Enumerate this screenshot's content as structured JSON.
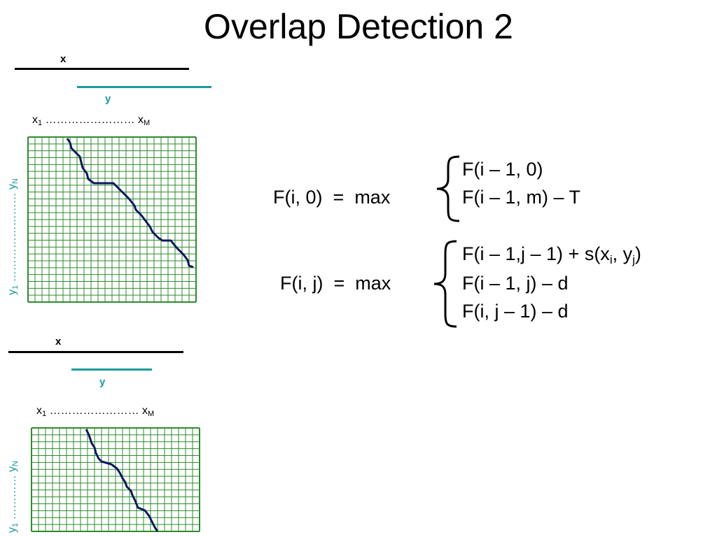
{
  "title": "Overlap Detection 2",
  "colors": {
    "grid": "#2e8b2e",
    "path": "#0c1860",
    "teal": "#1a9a9a"
  },
  "panel1": {
    "x_label": "x",
    "y_label": "y",
    "x_first": "x",
    "x_first_sub": "1",
    "x_dots": "……………………",
    "x_last": "x",
    "x_last_sub": "M",
    "y_first": "y",
    "y_first_sub": "1",
    "y_dots": "……………………",
    "y_last": "y",
    "y_last_sub": "N",
    "grid_cols": 24,
    "grid_rows": 24
  },
  "panel2": {
    "x_label": "x",
    "y_label": "y",
    "x_first": "x",
    "x_first_sub": "1",
    "x_dots": "……………………",
    "x_last": "x",
    "x_last_sub": "M",
    "y_first": "y",
    "y_first_sub": "1",
    "y_dots": "…………",
    "y_last": "y",
    "y_last_sub": "N",
    "grid_cols": 24,
    "grid_rows": 15
  },
  "equation1": {
    "lhs": "F(i, 0)",
    "eq": "=",
    "op": "max",
    "cases": [
      "F(i – 1, 0)",
      "F(i – 1, m) – T"
    ]
  },
  "equation2": {
    "lhs": "F(i, j)",
    "eq": "=",
    "op": "max",
    "case1_prefix": "F(i – 1,j – 1) + s(x",
    "case1_sub1": "i",
    "case1_mid": ", y",
    "case1_sub2": "j",
    "case1_suffix": ")",
    "case2": "F(i – 1, j) – d",
    "case3": "F(i, j – 1) – d"
  }
}
